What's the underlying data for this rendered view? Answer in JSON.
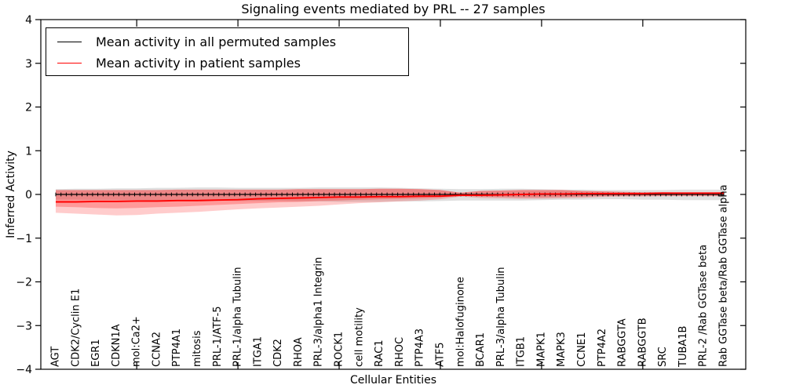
{
  "chart_data": {
    "type": "line",
    "title": "Signaling events mediated by PRL -- 27 samples",
    "xlabel": "Cellular Entities",
    "ylabel": "Inferred Activity",
    "ylim": [
      -4,
      4
    ],
    "yticks": [
      -4,
      -3,
      -2,
      -1,
      0,
      1,
      2,
      3,
      4
    ],
    "grid": false,
    "legend_position": "upper left",
    "x_minor_tick_positions": [
      5,
      10,
      15,
      20,
      25,
      30
    ],
    "categories": [
      "AGT",
      "CDK2/Cyclin E1",
      "EGR1",
      "CDKN1A",
      "mol:Ca2+",
      "CCNA2",
      "PTP4A1",
      "mitosis",
      "PRL-1/ATF-5",
      "PRL-1/alpha Tubulin",
      "ITGA1",
      "CDK2",
      "RHOA",
      "PRL-3/alpha1 Integrin",
      "ROCK1",
      "cell motility",
      "RAC1",
      "RHOC",
      "PTP4A3",
      "ATF5",
      "mol:Halofuginone",
      "BCAR1",
      "PRL-3/alpha Tubulin",
      "ITGB1",
      "MAPK1",
      "MAPK3",
      "CCNE1",
      "PTP4A2",
      "RABGGTA",
      "RABGGTB",
      "SRC",
      "TUBA1B",
      "PRL-2 /Rab GGTase beta",
      "Rab GGTase beta/Rab GGTase alpha"
    ],
    "series": [
      {
        "name": "Mean activity in all permuted samples",
        "color": "#000000",
        "values": [
          0,
          0,
          0,
          0,
          0,
          0,
          0,
          0,
          0,
          0,
          0,
          0,
          0,
          0,
          0,
          0,
          0,
          0,
          0,
          0,
          0,
          0,
          0,
          0,
          0,
          0,
          0,
          0,
          0,
          0,
          0,
          0,
          0,
          0
        ]
      },
      {
        "name": "Mean activity in patient samples",
        "color": "#ff0000",
        "values": [
          -0.17,
          -0.17,
          -0.16,
          -0.16,
          -0.15,
          -0.15,
          -0.14,
          -0.14,
          -0.13,
          -0.12,
          -0.1,
          -0.09,
          -0.08,
          -0.07,
          -0.06,
          -0.06,
          -0.05,
          -0.05,
          -0.04,
          -0.04,
          -0.02,
          -0.02,
          -0.01,
          0.0,
          0.01,
          0.01,
          0.02,
          0.02,
          0.02,
          0.02,
          0.03,
          0.03,
          0.03,
          0.03
        ]
      }
    ],
    "bands": [
      {
        "name": "permuted-range",
        "color": "rgba(128,128,128,0.25)",
        "upper": [
          0.12,
          0.13,
          0.13,
          0.14,
          0.14,
          0.15,
          0.15,
          0.16,
          0.16,
          0.15,
          0.15,
          0.15,
          0.15,
          0.16,
          0.16,
          0.16,
          0.16,
          0.15,
          0.14,
          0.13,
          0.12,
          0.12,
          0.13,
          0.13,
          0.12,
          0.11,
          0.11,
          0.1,
          0.1,
          0.1,
          0.1,
          0.11,
          0.11,
          0.11
        ],
        "lower": [
          -0.12,
          -0.12,
          -0.13,
          -0.13,
          -0.13,
          -0.14,
          -0.14,
          -0.14,
          -0.14,
          -0.15,
          -0.15,
          -0.15,
          -0.16,
          -0.16,
          -0.17,
          -0.17,
          -0.17,
          -0.16,
          -0.16,
          -0.15,
          -0.14,
          -0.14,
          -0.14,
          -0.14,
          -0.13,
          -0.12,
          -0.12,
          -0.11,
          -0.11,
          -0.12,
          -0.12,
          -0.13,
          -0.13,
          -0.13
        ]
      },
      {
        "name": "patient-range-outer",
        "color": "rgba(255,0,0,0.20)",
        "upper": [
          0.1,
          0.1,
          0.1,
          0.1,
          0.1,
          0.1,
          0.11,
          0.11,
          0.11,
          0.11,
          0.11,
          0.11,
          0.12,
          0.12,
          0.12,
          0.12,
          0.13,
          0.13,
          0.12,
          0.1,
          0.04,
          0.08,
          0.09,
          0.1,
          0.1,
          0.1,
          0.08,
          0.07,
          0.06,
          0.05,
          0.05,
          0.04,
          0.04,
          0.05
        ],
        "lower": [
          -0.42,
          -0.44,
          -0.46,
          -0.48,
          -0.47,
          -0.44,
          -0.42,
          -0.4,
          -0.37,
          -0.34,
          -0.32,
          -0.3,
          -0.28,
          -0.26,
          -0.23,
          -0.2,
          -0.18,
          -0.16,
          -0.14,
          -0.11,
          -0.05,
          -0.08,
          -0.09,
          -0.1,
          -0.1,
          -0.09,
          -0.08,
          -0.06,
          -0.05,
          -0.05,
          -0.04,
          -0.04,
          -0.04,
          -0.04
        ]
      },
      {
        "name": "patient-range-inner",
        "color": "rgba(255,0,0,0.25)",
        "upper": [
          0.1,
          0.1,
          0.1,
          0.1,
          0.1,
          0.1,
          0.11,
          0.11,
          0.11,
          0.11,
          0.11,
          0.11,
          0.12,
          0.12,
          0.12,
          0.12,
          0.13,
          0.13,
          0.12,
          0.1,
          0.04,
          0.08,
          0.09,
          0.1,
          0.1,
          0.1,
          0.08,
          0.07,
          0.06,
          0.05,
          0.05,
          0.04,
          0.04,
          0.05
        ],
        "lower": [
          -0.28,
          -0.29,
          -0.31,
          -0.32,
          -0.31,
          -0.29,
          -0.28,
          -0.26,
          -0.24,
          -0.22,
          -0.2,
          -0.18,
          -0.17,
          -0.15,
          -0.14,
          -0.12,
          -0.11,
          -0.1,
          -0.09,
          -0.07,
          -0.03,
          -0.05,
          -0.06,
          -0.07,
          -0.07,
          -0.06,
          -0.05,
          -0.04,
          -0.03,
          -0.03,
          -0.03,
          -0.03,
          -0.03,
          -0.03
        ]
      }
    ]
  },
  "legend": {
    "items": [
      {
        "label": "Mean activity in all permuted samples",
        "color": "#000000"
      },
      {
        "label": "Mean activity in patient samples",
        "color": "#ff0000"
      }
    ]
  }
}
